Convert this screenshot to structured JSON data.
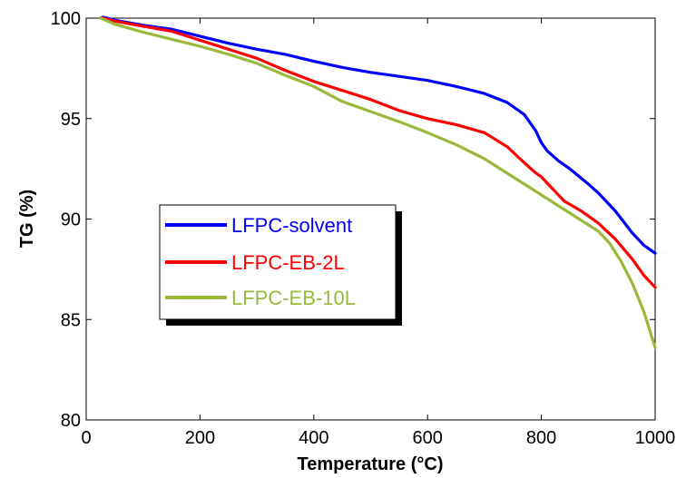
{
  "chart_data": {
    "type": "line",
    "title": "",
    "xlabel": "Temperature (°C)",
    "ylabel": "TG (%)",
    "xlim": [
      0,
      1000
    ],
    "ylim": [
      80,
      100
    ],
    "xticks": [
      "0",
      "200",
      "400",
      "600",
      "800",
      "1000"
    ],
    "yticks": [
      "80",
      "85",
      "90",
      "95",
      "100"
    ],
    "grid": false,
    "legend_position": "center-left",
    "series": [
      {
        "name": "LFPC-solvent",
        "color": "#0000ff",
        "x": [
          25,
          30,
          50,
          100,
          150,
          200,
          250,
          300,
          350,
          400,
          450,
          500,
          550,
          600,
          650,
          700,
          740,
          770,
          790,
          800,
          810,
          830,
          850,
          880,
          900,
          930,
          960,
          980,
          1000
        ],
        "y": [
          100.0,
          100.05,
          99.9,
          99.65,
          99.45,
          99.1,
          98.75,
          98.45,
          98.2,
          97.85,
          97.55,
          97.3,
          97.1,
          96.9,
          96.6,
          96.25,
          95.8,
          95.2,
          94.4,
          93.8,
          93.4,
          92.9,
          92.5,
          91.8,
          91.3,
          90.4,
          89.3,
          88.7,
          88.3
        ]
      },
      {
        "name": "LFPC-EB-2L",
        "color": "#ff0000",
        "x": [
          25,
          30,
          50,
          100,
          150,
          200,
          250,
          300,
          350,
          400,
          450,
          500,
          550,
          600,
          650,
          700,
          740,
          770,
          790,
          800,
          820,
          840,
          870,
          900,
          930,
          960,
          980,
          1000
        ],
        "y": [
          100.0,
          100.0,
          99.85,
          99.6,
          99.35,
          98.9,
          98.45,
          98.0,
          97.4,
          96.85,
          96.4,
          95.95,
          95.4,
          95.0,
          94.7,
          94.3,
          93.6,
          92.8,
          92.3,
          92.1,
          91.5,
          90.9,
          90.4,
          89.8,
          89.0,
          88.0,
          87.2,
          86.6
        ]
      },
      {
        "name": "LFPC-EB-10L",
        "color": "#9ab93b",
        "x": [
          25,
          30,
          50,
          100,
          150,
          200,
          250,
          300,
          350,
          400,
          450,
          500,
          550,
          600,
          650,
          700,
          750,
          800,
          850,
          900,
          920,
          940,
          960,
          980,
          1000
        ],
        "y": [
          100.0,
          99.95,
          99.7,
          99.3,
          98.95,
          98.6,
          98.2,
          97.75,
          97.15,
          96.6,
          95.85,
          95.35,
          94.85,
          94.3,
          93.7,
          93.0,
          92.1,
          91.2,
          90.3,
          89.4,
          88.8,
          87.9,
          86.8,
          85.4,
          83.6
        ]
      }
    ]
  }
}
